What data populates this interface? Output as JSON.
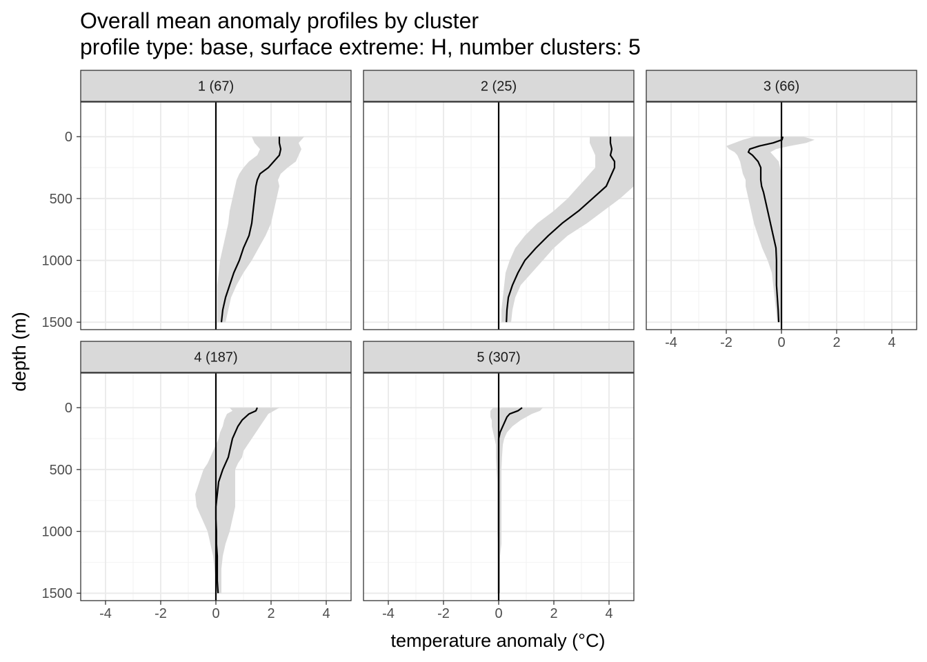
{
  "chart_data": {
    "type": "line",
    "title": "Overall mean anomaly profiles by cluster",
    "subtitle": "profile type: base, surface extreme: H, number clusters: 5",
    "xlabel": "temperature anomaly (°C)",
    "ylabel": "depth (m)",
    "xlim": [
      -4.9,
      4.9
    ],
    "ylim": [
      1560,
      -280
    ],
    "y_reversed": true,
    "x_ticks": [
      -4,
      -2,
      0,
      2,
      4
    ],
    "x_tick_labels": [
      "-4",
      "-2",
      "0",
      "2",
      "4"
    ],
    "y_ticks": [
      0,
      500,
      1000,
      1500
    ],
    "y_tick_labels": [
      "0",
      "500",
      "1000",
      "1500"
    ],
    "grid": true,
    "reference_line_x": 0,
    "colors": {
      "line": "#000000",
      "ribbon": "#d9d9d9",
      "strip": "#d9d9d9",
      "grid": "#ebebeb"
    },
    "panels": [
      {
        "label": "1 (67)",
        "depth": [
          0,
          50,
          100,
          150,
          200,
          250,
          300,
          350,
          400,
          500,
          600,
          700,
          800,
          900,
          1000,
          1100,
          1200,
          1300,
          1400,
          1500
        ],
        "mean": [
          2.3,
          2.3,
          2.35,
          2.3,
          2.1,
          1.9,
          1.6,
          1.5,
          1.45,
          1.4,
          1.35,
          1.3,
          1.2,
          1.0,
          0.85,
          0.65,
          0.5,
          0.35,
          0.25,
          0.2
        ],
        "lower": [
          1.3,
          1.4,
          1.6,
          1.5,
          1.2,
          1.0,
          0.85,
          0.75,
          0.7,
          0.6,
          0.5,
          0.45,
          0.35,
          0.25,
          0.15,
          0.1,
          0.05,
          0.05,
          0.05,
          0.05
        ],
        "upper": [
          3.2,
          3.0,
          3.1,
          3.0,
          2.9,
          2.6,
          2.35,
          2.25,
          2.3,
          2.2,
          2.1,
          2.0,
          1.8,
          1.55,
          1.3,
          1.0,
          0.75,
          0.55,
          0.45,
          0.35
        ]
      },
      {
        "label": "2 (25)",
        "depth": [
          0,
          50,
          100,
          150,
          200,
          250,
          300,
          350,
          400,
          500,
          600,
          700,
          800,
          900,
          1000,
          1100,
          1200,
          1300,
          1400,
          1500
        ],
        "mean": [
          4.05,
          4.05,
          4.1,
          4.05,
          4.2,
          4.2,
          4.1,
          4.0,
          3.9,
          3.4,
          2.9,
          2.3,
          1.8,
          1.35,
          0.95,
          0.7,
          0.5,
          0.35,
          0.3,
          0.28
        ],
        "lower": [
          3.3,
          3.3,
          3.4,
          3.5,
          3.5,
          3.5,
          3.3,
          3.1,
          2.9,
          2.5,
          2.0,
          1.4,
          0.95,
          0.6,
          0.4,
          0.25,
          0.2,
          0.15,
          0.1,
          0.1
        ],
        "upper": [
          4.9,
          4.9,
          4.9,
          4.9,
          4.9,
          4.9,
          4.9,
          4.9,
          4.9,
          4.4,
          3.8,
          3.2,
          2.5,
          2.0,
          1.6,
          1.2,
          0.8,
          0.6,
          0.5,
          0.45
        ]
      },
      {
        "label": "3 (66)",
        "depth": [
          0,
          25,
          50,
          75,
          100,
          125,
          150,
          200,
          250,
          300,
          350,
          400,
          450,
          500,
          600,
          700,
          800,
          900,
          1000,
          1100,
          1200,
          1300,
          1400,
          1500
        ],
        "mean": [
          0.05,
          0.02,
          -0.3,
          -0.8,
          -1.15,
          -1.2,
          -1.05,
          -0.85,
          -0.75,
          -0.75,
          -0.75,
          -0.72,
          -0.65,
          -0.6,
          -0.5,
          -0.4,
          -0.3,
          -0.2,
          -0.18,
          -0.18,
          -0.18,
          -0.15,
          -0.12,
          -0.1
        ],
        "lower": [
          -1.0,
          -1.4,
          -1.7,
          -2.0,
          -1.9,
          -1.7,
          -1.6,
          -1.5,
          -1.45,
          -1.4,
          -1.3,
          -1.3,
          -1.25,
          -1.2,
          -1.1,
          -1.0,
          -0.85,
          -0.7,
          -0.5,
          -0.35,
          -0.3,
          -0.25,
          -0.2,
          -0.15
        ],
        "upper": [
          0.8,
          1.2,
          0.9,
          0.3,
          -0.2,
          -0.4,
          -0.3,
          -0.1,
          -0.05,
          0.0,
          0.0,
          0.0,
          0.0,
          0.0,
          0.0,
          0.0,
          0.0,
          0.0,
          0.0,
          0.0,
          0.0,
          0.0,
          0.0,
          0.0
        ]
      },
      {
        "label": "4 (187)",
        "depth": [
          0,
          25,
          50,
          100,
          150,
          200,
          250,
          300,
          350,
          400,
          450,
          500,
          600,
          700,
          800,
          900,
          1000,
          1100,
          1200,
          1300,
          1400,
          1500
        ],
        "mean": [
          1.5,
          1.45,
          1.2,
          0.95,
          0.8,
          0.7,
          0.6,
          0.55,
          0.5,
          0.45,
          0.35,
          0.25,
          0.1,
          0.05,
          0.0,
          0.0,
          0.02,
          0.02,
          0.05,
          0.05,
          0.05,
          0.08
        ],
        "lower": [
          0.5,
          0.6,
          0.4,
          0.3,
          0.25,
          0.15,
          0.1,
          0.0,
          -0.1,
          -0.2,
          -0.3,
          -0.45,
          -0.6,
          -0.75,
          -0.7,
          -0.5,
          -0.3,
          -0.2,
          -0.1,
          -0.05,
          0.0,
          0.0
        ],
        "upper": [
          2.3,
          2.1,
          1.9,
          1.75,
          1.6,
          1.45,
          1.3,
          1.15,
          1.0,
          0.95,
          0.8,
          0.7,
          0.7,
          0.7,
          0.7,
          0.6,
          0.5,
          0.35,
          0.25,
          0.2,
          0.2,
          0.2
        ]
      },
      {
        "label": "5 (307)",
        "depth": [
          0,
          25,
          50,
          75,
          100,
          150,
          200,
          250,
          300,
          400,
          500,
          600,
          700,
          800,
          900,
          1000,
          1100,
          1200,
          1300,
          1400,
          1500
        ],
        "mean": [
          0.85,
          0.7,
          0.4,
          0.3,
          0.25,
          0.15,
          0.05,
          0.0,
          0.0,
          0.0,
          0.0,
          0.0,
          0.0,
          0.0,
          0.0,
          0.0,
          0.0,
          0.0,
          0.0,
          0.0,
          0.0
        ],
        "lower": [
          -0.2,
          -0.3,
          -0.3,
          -0.3,
          -0.25,
          -0.25,
          -0.2,
          -0.15,
          -0.1,
          -0.1,
          -0.08,
          -0.05,
          -0.05,
          -0.05,
          -0.05,
          -0.05,
          -0.03,
          -0.03,
          -0.02,
          -0.02,
          -0.02
        ],
        "upper": [
          1.6,
          1.5,
          1.2,
          1.0,
          0.8,
          0.5,
          0.3,
          0.2,
          0.15,
          0.12,
          0.1,
          0.1,
          0.1,
          0.1,
          0.1,
          0.1,
          0.1,
          0.05,
          0.05,
          0.05,
          0.05
        ]
      }
    ]
  }
}
